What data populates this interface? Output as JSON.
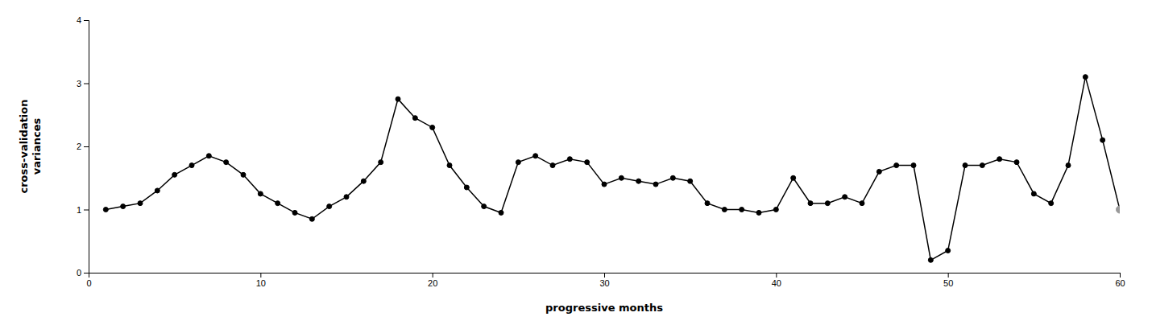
{
  "chart_data": {
    "type": "line",
    "x": [
      1,
      2,
      3,
      4,
      5,
      6,
      7,
      8,
      9,
      10,
      11,
      12,
      13,
      14,
      15,
      16,
      17,
      18,
      19,
      20,
      21,
      22,
      23,
      24,
      25,
      26,
      27,
      28,
      29,
      30,
      31,
      32,
      33,
      34,
      35,
      36,
      37,
      38,
      39,
      40,
      41,
      42,
      43,
      44,
      45,
      46,
      47,
      48,
      49,
      50,
      51,
      52,
      53,
      54,
      55,
      56,
      57,
      58,
      59,
      60
    ],
    "series": [
      {
        "values": [
          1.0,
          1.05,
          1.1,
          1.3,
          1.55,
          1.7,
          1.85,
          1.75,
          1.55,
          1.25,
          1.1,
          0.95,
          0.85,
          1.05,
          1.2,
          1.45,
          1.75,
          2.75,
          2.45,
          2.3,
          1.7,
          1.35,
          1.05,
          0.95,
          1.75,
          1.85,
          1.7,
          1.8,
          1.75,
          1.4,
          1.5,
          1.45,
          1.4,
          1.5,
          1.45,
          1.1,
          1.0,
          1.0,
          0.95,
          1.0,
          1.5,
          1.1,
          1.1,
          1.2,
          1.1,
          1.6,
          1.7,
          1.7,
          0.2,
          0.35,
          1.7,
          1.7,
          1.8,
          1.75,
          1.25,
          1.1,
          1.7,
          3.1,
          2.1,
          1.0
        ],
        "color": "#000000",
        "colors": [
          "#000000",
          "#000000",
          "#000000",
          "#000000",
          "#000000",
          "#000000",
          "#000000",
          "#000000",
          "#000000",
          "#000000",
          "#000000",
          "#000000",
          "#000000",
          "#000000",
          "#000000",
          "#000000",
          "#000000",
          "#000000",
          "#000000",
          "#000000",
          "#000000",
          "#000000",
          "#000000",
          "#000000",
          "#000000",
          "#000000",
          "#000000",
          "#000000",
          "#000000",
          "#000000",
          "#000000",
          "#000000",
          "#000000",
          "#000000",
          "#000000",
          "#000000",
          "#000000",
          "#000000",
          "#000000",
          "#000000",
          "#000000",
          "#000000",
          "#000000",
          "#000000",
          "#000000",
          "#000000",
          "#000000",
          "#000000",
          "#000000",
          "#000000",
          "#000000",
          "#000000",
          "#000000",
          "#000000",
          "#000000",
          "#000000",
          "#000000",
          "#000000",
          "#000000",
          "#999999"
        ],
        "marker": "circle"
      }
    ],
    "xlabel": "progressive months",
    "ylabel": "cross-validation\nvariances",
    "xlim": [
      0,
      60
    ],
    "ylim": [
      0,
      4
    ],
    "xticks": [
      0,
      10,
      20,
      30,
      40,
      50,
      60
    ],
    "yticks": [
      0,
      1,
      2,
      3,
      4
    ],
    "grid": false
  }
}
